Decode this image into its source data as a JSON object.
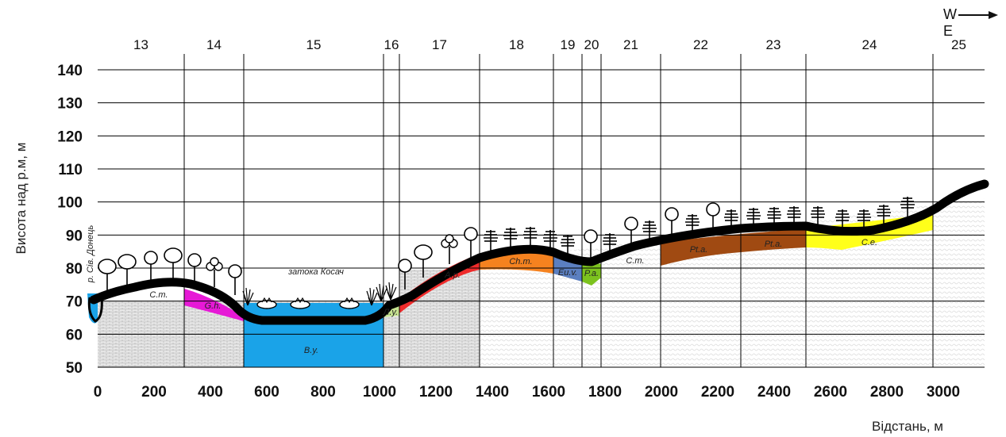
{
  "compass": {
    "west": "W",
    "east": "E"
  },
  "axes": {
    "ylabel": "Висота над р.м, м",
    "xlabel": "Відстань, м",
    "y_ticks": [
      "140",
      "130",
      "120",
      "110",
      "100",
      "90",
      "80",
      "70",
      "60",
      "50"
    ],
    "x_ticks": [
      "0",
      "200",
      "400",
      "600",
      "800",
      "1000",
      "1200",
      "1400",
      "1600",
      "1800",
      "2000",
      "2200",
      "2400",
      "2600",
      "2800",
      "3000"
    ]
  },
  "sections": [
    "13",
    "14",
    "15",
    "16",
    "17",
    "18",
    "19",
    "20",
    "21",
    "22",
    "23",
    "24",
    "25"
  ],
  "labels": {
    "river": "р. Сів. Донець",
    "bay": "затока Косач",
    "ct_left": "C.m.",
    "gh": "G.h.",
    "by": "B.y.",
    "ly": "Л.у.",
    "ap": "A.p.",
    "chm": "Ch.m.",
    "euv": "Eu.v.",
    "pa": "P.a.",
    "ct_right": "C.m.",
    "pta1": "Pt.a.",
    "pta2": "Pt.a.",
    "ce": "C.e."
  },
  "colors": {
    "water": "#1aa3e8",
    "magenta": "#e619d6",
    "red": "#ee2b2b",
    "orange": "#f5821f",
    "steel": "#5b7fc0",
    "green": "#7cc21e",
    "brown": "#a04a12",
    "yellow": "#ffff1a",
    "lightgreen": "#c7e391",
    "ground": "#111111"
  }
}
